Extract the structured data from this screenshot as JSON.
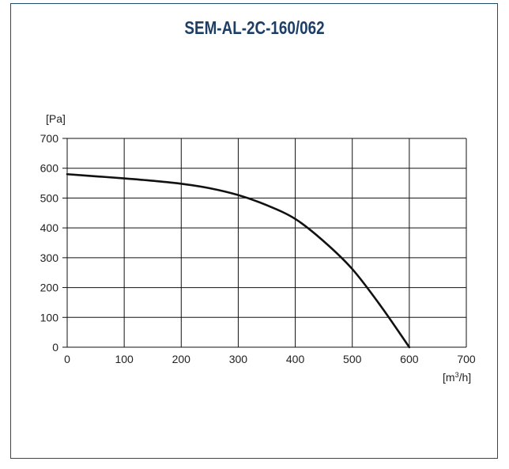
{
  "chart_data": {
    "type": "line",
    "title": "SEM-AL-2C-160/062",
    "ylabel": "[Pa]",
    "xlabel_main": "[m",
    "xlabel_sup": "3",
    "xlabel_tail": "/h]",
    "xlim": [
      0,
      700
    ],
    "ylim": [
      0,
      700
    ],
    "xticks": [
      0,
      100,
      200,
      300,
      400,
      500,
      600,
      700
    ],
    "yticks": [
      0,
      100,
      200,
      300,
      400,
      500,
      600,
      700
    ],
    "grid": true,
    "line_color": "#111111",
    "series": [
      {
        "x": [
          0,
          50,
          100,
          150,
          200,
          250,
          300,
          350,
          400,
          450,
          500,
          550,
          600
        ],
        "y": [
          580,
          573,
          566,
          558,
          548,
          533,
          510,
          476,
          430,
          355,
          262,
          138,
          0
        ]
      }
    ]
  }
}
